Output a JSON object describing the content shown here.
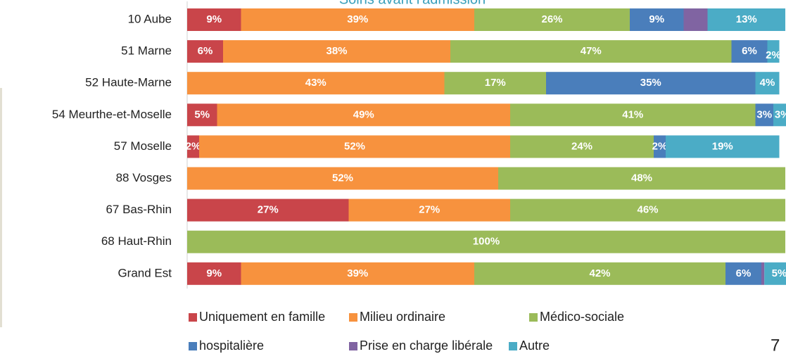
{
  "chart_data": {
    "type": "stacked_barh",
    "title": "Soins avant l'admission",
    "categories": [
      "10 Aube",
      "51 Marne",
      "52 Haute-Marne",
      "54 Meurthe-et-Moselle",
      "57 Moselle",
      "88 Vosges",
      "67 Bas-Rhin",
      "68 Haut-Rhin",
      "Grand Est"
    ],
    "xlim": [
      0,
      100
    ],
    "series": [
      {
        "name": "Uniquement en famille",
        "color": "#c9454a",
        "values": [
          9,
          6,
          0,
          5,
          2,
          0,
          27,
          0,
          9
        ],
        "value_labels": [
          "9%",
          "6%",
          null,
          "5%",
          "2%",
          null,
          "27%",
          null,
          "9%"
        ]
      },
      {
        "name": "Milieu ordinaire",
        "color": "#f7923e",
        "values": [
          39,
          38,
          43,
          49,
          52,
          52,
          27,
          0,
          39
        ],
        "value_labels": [
          "39%",
          "38%",
          "43%",
          "49%",
          "52%",
          "52%",
          "27%",
          null,
          "39%"
        ]
      },
      {
        "name": "Médico-sociale",
        "color": "#9bbb59",
        "values": [
          26,
          47,
          17,
          41,
          24,
          48,
          46,
          100,
          42
        ],
        "value_labels": [
          "26%",
          "47%",
          "17%",
          "41%",
          "24%",
          "48%",
          "46%",
          "100%",
          "42%"
        ]
      },
      {
        "name": "hospitalière",
        "color": "#4a7ebb",
        "values": [
          9,
          6,
          35,
          3,
          2,
          0,
          0,
          0,
          6
        ],
        "value_labels": [
          "9%",
          "6%",
          "35%",
          "3%",
          "2%",
          null,
          null,
          null,
          "6%"
        ]
      },
      {
        "name": "Prise en charge libérale",
        "color": "#8064a2",
        "values": [
          4,
          0,
          0,
          0,
          0,
          0,
          0,
          0,
          0.5
        ],
        "value_labels": [
          null,
          null,
          null,
          null,
          null,
          null,
          null,
          null,
          null
        ]
      },
      {
        "name": "Autre",
        "color": "#4bacc6",
        "values": [
          13,
          2,
          4,
          3,
          19,
          0,
          0,
          0,
          5
        ],
        "value_labels": [
          "13%",
          "2%",
          "4%",
          "3%",
          "19%",
          null,
          null,
          null,
          "5%"
        ]
      }
    ]
  },
  "page_number": "7"
}
